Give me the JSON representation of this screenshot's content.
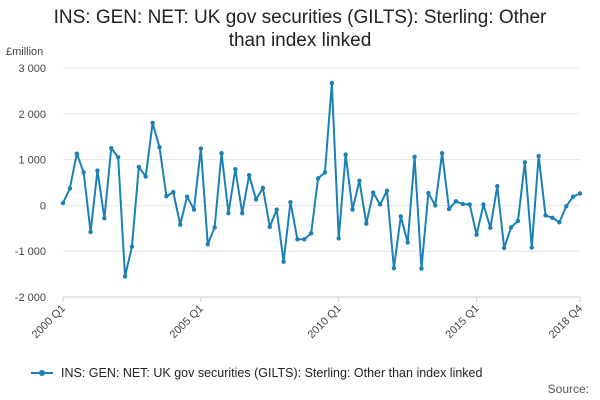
{
  "chart_data": {
    "type": "line",
    "title_line1": "INS: GEN: NET: UK gov securities (GILTS): Sterling: Other",
    "title_line2": "than index linked",
    "unit_label": "£million",
    "ylim": [
      -2000,
      3000
    ],
    "y_ticks": [
      3000,
      2000,
      1000,
      0,
      -1000,
      -2000
    ],
    "y_tick_labels": [
      "3 000",
      "2 000",
      "1 000",
      "0",
      "-1 000",
      "-2 000"
    ],
    "x_ticks": [
      {
        "label": "2000 Q1",
        "index": 0
      },
      {
        "label": "2005 Q1",
        "index": 20
      },
      {
        "label": "2010 Q1",
        "index": 40
      },
      {
        "label": "2015 Q1",
        "index": 60
      },
      {
        "label": "2018 Q4",
        "index": 75
      }
    ],
    "grid": true,
    "legend_position": "bottom",
    "source_label": "Source:",
    "colors": {
      "series": "#1a80b6",
      "grid": "#e6e6e6",
      "axis": "#cccccc"
    },
    "series": [
      {
        "name": "INS: GEN: NET: UK gov securities (GILTS): Sterling: Other than index linked",
        "x": [
          "2000 Q1",
          "2000 Q2",
          "2000 Q3",
          "2000 Q4",
          "2001 Q1",
          "2001 Q2",
          "2001 Q3",
          "2001 Q4",
          "2002 Q1",
          "2002 Q2",
          "2002 Q3",
          "2002 Q4",
          "2003 Q1",
          "2003 Q2",
          "2003 Q3",
          "2003 Q4",
          "2004 Q1",
          "2004 Q2",
          "2004 Q3",
          "2004 Q4",
          "2005 Q1",
          "2005 Q2",
          "2005 Q3",
          "2005 Q4",
          "2006 Q1",
          "2006 Q2",
          "2006 Q3",
          "2006 Q4",
          "2007 Q1",
          "2007 Q2",
          "2007 Q3",
          "2007 Q4",
          "2008 Q1",
          "2008 Q2",
          "2008 Q3",
          "2008 Q4",
          "2009 Q1",
          "2009 Q2",
          "2009 Q3",
          "2009 Q4",
          "2010 Q1",
          "2010 Q2",
          "2010 Q3",
          "2010 Q4",
          "2011 Q1",
          "2011 Q2",
          "2011 Q3",
          "2011 Q4",
          "2012 Q1",
          "2012 Q2",
          "2012 Q3",
          "2012 Q4",
          "2013 Q1",
          "2013 Q2",
          "2013 Q3",
          "2013 Q4",
          "2014 Q1",
          "2014 Q2",
          "2014 Q3",
          "2014 Q4",
          "2015 Q1",
          "2015 Q2",
          "2015 Q3",
          "2015 Q4",
          "2016 Q1",
          "2016 Q2",
          "2016 Q3",
          "2016 Q4",
          "2017 Q1",
          "2017 Q2",
          "2017 Q3",
          "2017 Q4",
          "2018 Q1",
          "2018 Q2",
          "2018 Q3",
          "2018 Q4"
        ],
        "values": [
          50,
          370,
          1130,
          720,
          -580,
          760,
          -280,
          1250,
          1050,
          -1550,
          -900,
          840,
          630,
          1800,
          1270,
          200,
          290,
          -420,
          190,
          -90,
          1240,
          -850,
          -480,
          1140,
          -170,
          790,
          -170,
          660,
          130,
          380,
          -470,
          -90,
          -1230,
          70,
          -740,
          -740,
          -610,
          590,
          720,
          2670,
          -720,
          1110,
          -90,
          540,
          -400,
          280,
          20,
          320,
          -1370,
          -240,
          -810,
          1060,
          -1380,
          270,
          0,
          1140,
          -80,
          90,
          30,
          20,
          -640,
          20,
          -490,
          420,
          -930,
          -480,
          -340,
          940,
          -920,
          1080,
          -220,
          -270,
          -370,
          -20,
          190,
          260
        ]
      }
    ]
  }
}
